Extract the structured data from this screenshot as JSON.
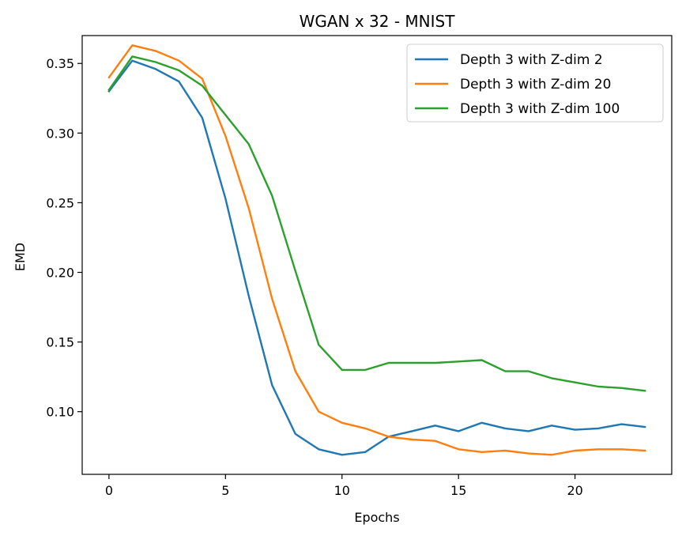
{
  "chart_data": {
    "type": "line",
    "title": "WGAN x 32 - MNIST",
    "xlabel": "Epochs",
    "ylabel": "EMD",
    "xlim": [
      -1.15,
      24.15
    ],
    "ylim": [
      0.055,
      0.37
    ],
    "xticks": [
      0,
      5,
      10,
      15,
      20
    ],
    "xtick_labels": [
      "0",
      "5",
      "10",
      "15",
      "20"
    ],
    "yticks": [
      0.1,
      0.15,
      0.2,
      0.25,
      0.3,
      0.35
    ],
    "ytick_labels": [
      "0.10",
      "0.15",
      "0.20",
      "0.25",
      "0.30",
      "0.35"
    ],
    "grid": false,
    "legend_position": "top-right",
    "x": [
      0,
      1,
      2,
      3,
      4,
      5,
      6,
      7,
      8,
      9,
      10,
      11,
      12,
      13,
      14,
      15,
      16,
      17,
      18,
      19,
      20,
      21,
      22,
      23
    ],
    "series": [
      {
        "name": "Depth 3 with Z-dim 2",
        "color": "#1f77b4",
        "values": [
          0.33,
          0.352,
          0.346,
          0.337,
          0.311,
          0.253,
          0.183,
          0.119,
          0.084,
          0.073,
          0.069,
          0.071,
          0.082,
          0.086,
          0.09,
          0.086,
          0.092,
          0.088,
          0.086,
          0.09,
          0.087,
          0.088,
          0.091,
          0.089
        ]
      },
      {
        "name": "Depth 3 with Z-dim 20",
        "color": "#ff7f0e",
        "values": [
          0.34,
          0.363,
          0.359,
          0.352,
          0.339,
          0.298,
          0.246,
          0.181,
          0.129,
          0.1,
          0.092,
          0.088,
          0.082,
          0.08,
          0.079,
          0.073,
          0.071,
          0.072,
          0.07,
          0.069,
          0.072,
          0.073,
          0.073,
          0.072
        ]
      },
      {
        "name": "Depth 3 with Z-dim 100",
        "color": "#2ca02c",
        "values": [
          0.331,
          0.355,
          0.351,
          0.345,
          0.334,
          0.313,
          0.292,
          0.255,
          0.201,
          0.148,
          0.13,
          0.13,
          0.135,
          0.135,
          0.135,
          0.136,
          0.137,
          0.129,
          0.129,
          0.124,
          0.121,
          0.118,
          0.117,
          0.115
        ]
      }
    ]
  }
}
